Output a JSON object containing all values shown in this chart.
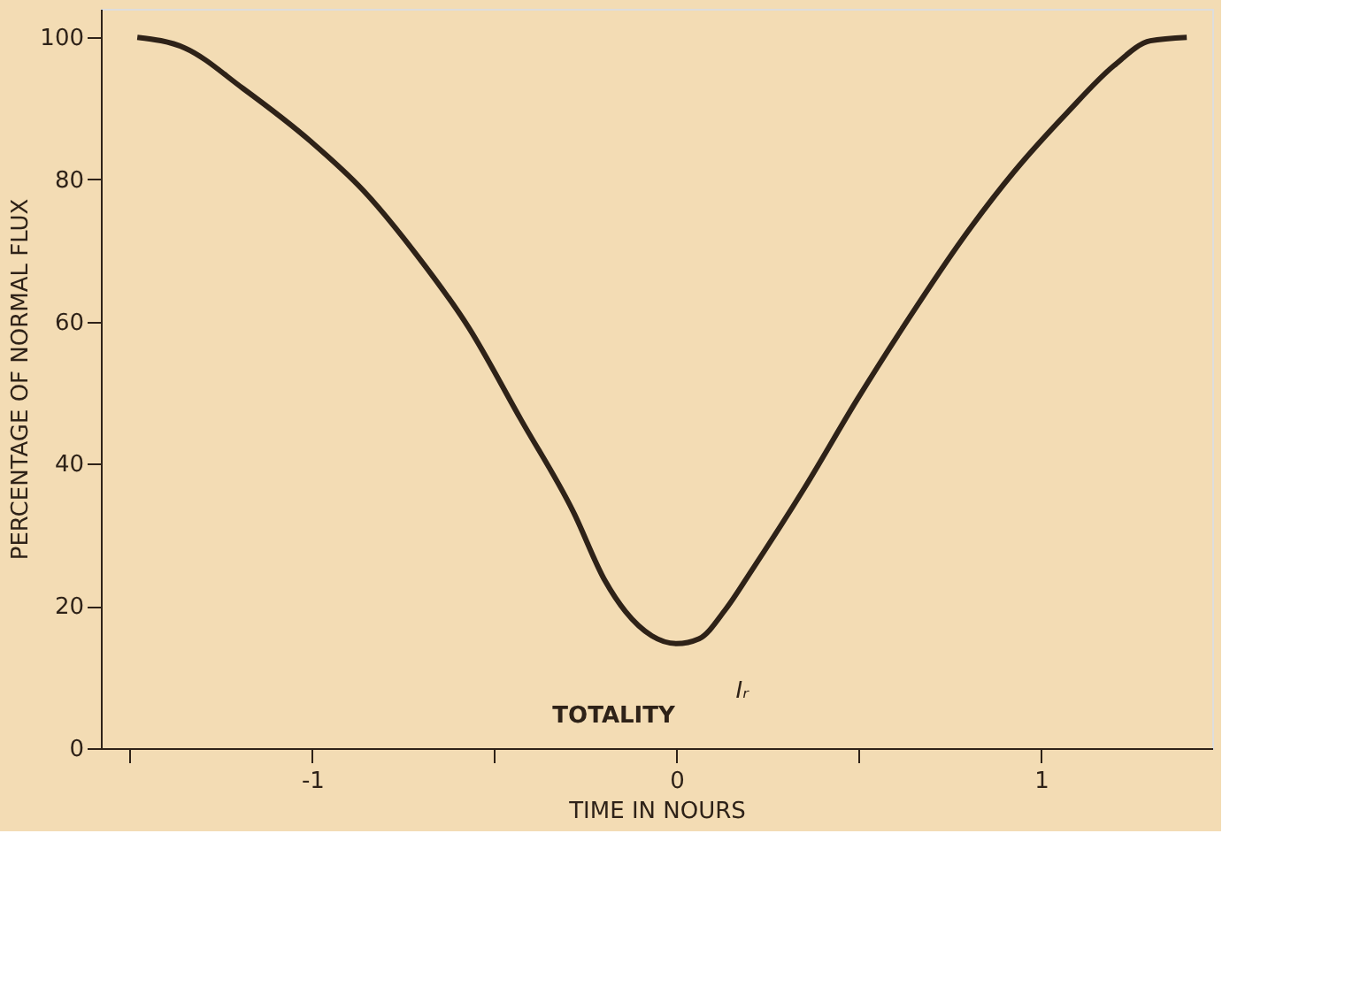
{
  "chart_data": {
    "type": "line",
    "xlabel": "TIME IN NOURS",
    "ylabel": "PERCENTAGE OF NORMAL FLUX",
    "x": [
      -1.48,
      -1.35,
      -1.19,
      -1.003,
      -0.859,
      -0.715,
      -0.571,
      -0.427,
      -0.283,
      -0.197,
      -0.14,
      -0.068,
      0,
      0.062,
      0.134,
      0.206,
      0.351,
      0.495,
      0.639,
      0.784,
      0.928,
      1.072,
      1.2,
      1.3,
      1.4
    ],
    "series": [
      {
        "color": "#2e2218",
        "values": [
          100,
          98.5,
          92.8,
          85.3,
          78.4,
          69.5,
          59.2,
          46.2,
          33.2,
          23.6,
          19.2,
          15.8,
          14.7,
          15.4,
          19.5,
          25,
          36.6,
          49,
          60.6,
          71.6,
          81.2,
          89.4,
          96,
          99.5,
          100
        ]
      }
    ],
    "xlim": [
      -1.58,
      1.47
    ],
    "xticks": [
      {
        "value": -1.5,
        "label": null
      },
      {
        "value": -1,
        "label": "-1"
      },
      {
        "value": -0.5,
        "label": null
      },
      0,
      {
        "value": 0.5,
        "label": null
      },
      1
    ],
    "ylim": [
      0,
      104
    ],
    "yticks": [
      0,
      20,
      40,
      60,
      80,
      100
    ],
    "annotations": [
      "TOTALITY",
      "Iᵣ"
    ],
    "grid": false,
    "marker": "none",
    "line_style": "solid"
  }
}
